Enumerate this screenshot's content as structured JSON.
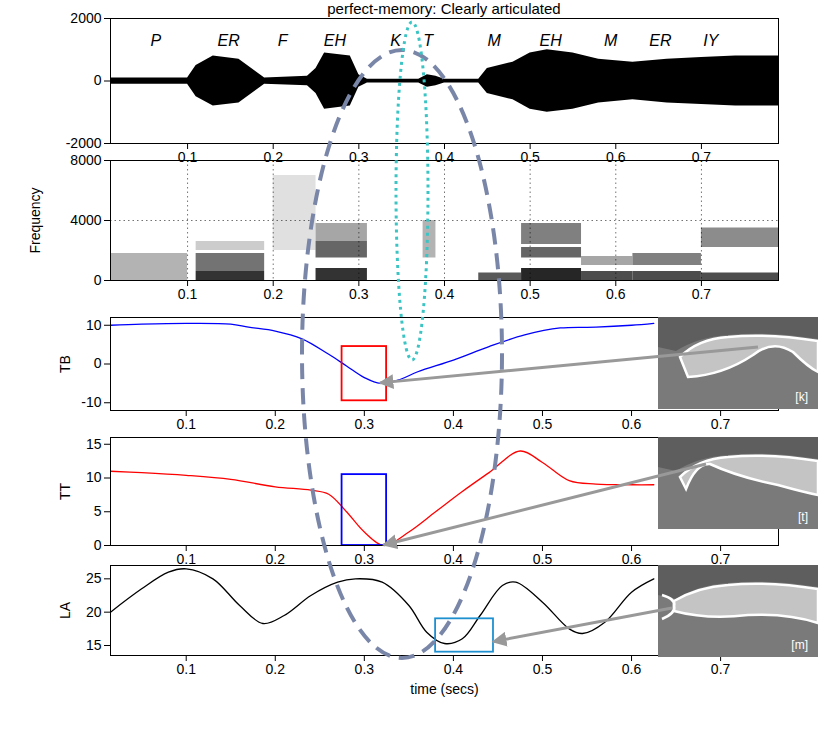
{
  "chart_data": [
    {
      "type": "area",
      "title": "perfect-memory: Clearly articulated",
      "x": [
        0.01,
        0.1,
        0.11,
        0.13,
        0.16,
        0.18,
        0.19,
        0.24,
        0.25,
        0.26,
        0.29,
        0.3,
        0.31,
        0.37,
        0.38,
        0.39,
        0.4,
        0.44,
        0.45,
        0.48,
        0.5,
        0.52,
        0.55,
        0.58,
        0.62,
        0.66,
        0.7,
        0.74,
        0.79
      ],
      "upper": [
        100,
        100,
        500,
        800,
        700,
        300,
        100,
        150,
        400,
        900,
        800,
        200,
        60,
        60,
        200,
        150,
        60,
        60,
        400,
        600,
        900,
        1000,
        900,
        700,
        600,
        700,
        750,
        800,
        800
      ],
      "lower": [
        -100,
        -100,
        -500,
        -800,
        -700,
        -300,
        -100,
        -150,
        -400,
        -900,
        -800,
        -200,
        -60,
        -60,
        -200,
        -150,
        -60,
        -60,
        -400,
        -600,
        -900,
        -1000,
        -900,
        -700,
        -600,
        -700,
        -750,
        -800,
        -800
      ],
      "color": "#000000",
      "xlim": [
        0.01,
        0.79
      ],
      "xticks": [
        0.1,
        0.2,
        0.3,
        0.4,
        0.5,
        0.6,
        0.7
      ],
      "ylim": [
        -2000,
        2000
      ],
      "yticks": [
        -2000,
        0,
        2000
      ],
      "annotations": [
        {
          "text": "P",
          "x": 0.063,
          "y": 1300
        },
        {
          "text": "ER",
          "x": 0.148,
          "y": 1300
        },
        {
          "text": "F",
          "x": 0.211,
          "y": 1300
        },
        {
          "text": "EH",
          "x": 0.272,
          "y": 1300
        },
        {
          "text": "K",
          "x": 0.343,
          "y": 1300
        },
        {
          "text": "T",
          "x": 0.381,
          "y": 1300
        },
        {
          "text": "M",
          "x": 0.458,
          "y": 1300
        },
        {
          "text": "EH",
          "x": 0.524,
          "y": 1300
        },
        {
          "text": "M",
          "x": 0.594,
          "y": 1300
        },
        {
          "text": "ER",
          "x": 0.652,
          "y": 1300
        },
        {
          "text": "IY",
          "x": 0.711,
          "y": 1300
        }
      ]
    },
    {
      "type": "heatmap",
      "ylabel": "Frequency",
      "cells": [
        {
          "x": [
            0.01,
            0.1
          ],
          "y": [
            0,
            1800
          ],
          "value": 0.3
        },
        {
          "x": [
            0.11,
            0.19
          ],
          "y": [
            0,
            600
          ],
          "value": 0.8
        },
        {
          "x": [
            0.11,
            0.19
          ],
          "y": [
            600,
            1800
          ],
          "value": 0.55
        },
        {
          "x": [
            0.11,
            0.19
          ],
          "y": [
            2000,
            2600
          ],
          "value": 0.2
        },
        {
          "x": [
            0.2,
            0.25
          ],
          "y": [
            2000,
            7000
          ],
          "value": 0.12
        },
        {
          "x": [
            0.25,
            0.31
          ],
          "y": [
            0,
            800
          ],
          "value": 0.8
        },
        {
          "x": [
            0.25,
            0.31
          ],
          "y": [
            1500,
            2600
          ],
          "value": 0.6
        },
        {
          "x": [
            0.25,
            0.31
          ],
          "y": [
            2600,
            3800
          ],
          "value": 0.35
        },
        {
          "x": [
            0.375,
            0.39
          ],
          "y": [
            1500,
            4000
          ],
          "value": 0.3
        },
        {
          "x": [
            0.44,
            0.49
          ],
          "y": [
            0,
            500
          ],
          "value": 0.65
        },
        {
          "x": [
            0.49,
            0.56
          ],
          "y": [
            0,
            800
          ],
          "value": 0.85
        },
        {
          "x": [
            0.49,
            0.56
          ],
          "y": [
            1500,
            2200
          ],
          "value": 0.6
        },
        {
          "x": [
            0.49,
            0.56
          ],
          "y": [
            2400,
            3800
          ],
          "value": 0.5
        },
        {
          "x": [
            0.56,
            0.62
          ],
          "y": [
            0,
            600
          ],
          "value": 0.7
        },
        {
          "x": [
            0.56,
            0.62
          ],
          "y": [
            1000,
            1600
          ],
          "value": 0.35
        },
        {
          "x": [
            0.62,
            0.7
          ],
          "y": [
            0,
            600
          ],
          "value": 0.7
        },
        {
          "x": [
            0.62,
            0.7
          ],
          "y": [
            1000,
            1800
          ],
          "value": 0.5
        },
        {
          "x": [
            0.7,
            0.79
          ],
          "y": [
            0,
            500
          ],
          "value": 0.7
        },
        {
          "x": [
            0.7,
            0.79
          ],
          "y": [
            2200,
            3500
          ],
          "value": 0.45
        }
      ],
      "color_range": [
        0,
        1
      ],
      "xlim": [
        0.01,
        0.79
      ],
      "xticks": [
        0.1,
        0.2,
        0.3,
        0.4,
        0.5,
        0.6,
        0.7
      ],
      "ylim": [
        0,
        8000
      ],
      "yticks": [
        0,
        4000,
        8000
      ],
      "grid": true
    },
    {
      "type": "line",
      "ylabel": "TB",
      "x": [
        0.015,
        0.05,
        0.1,
        0.15,
        0.17,
        0.2,
        0.23,
        0.26,
        0.28,
        0.3,
        0.318,
        0.34,
        0.36,
        0.4,
        0.44,
        0.48,
        0.52,
        0.56,
        0.6,
        0.625
      ],
      "values": [
        10.0,
        10.3,
        10.5,
        10.3,
        9.5,
        8.5,
        6.5,
        2.5,
        -0.5,
        -3.5,
        -5.0,
        -4.0,
        -2.0,
        1.0,
        4.5,
        7.5,
        9.3,
        9.5,
        10.0,
        10.5
      ],
      "color": "#0000ff",
      "xlim": [
        0.015,
        0.765
      ],
      "xticks": [
        0.1,
        0.2,
        0.3,
        0.4,
        0.5,
        0.6,
        0.7
      ],
      "ylim": [
        -12,
        12
      ],
      "yticks": [
        -10,
        0,
        10
      ],
      "highlight": {
        "x": [
          0.275,
          0.325
        ],
        "y": [
          -9.5,
          4.5
        ],
        "color": "#ff0000"
      },
      "inset": {
        "label": "[k]",
        "target": [
          0.318,
          -5.0
        ]
      }
    },
    {
      "type": "line",
      "ylabel": "TT",
      "x": [
        0.015,
        0.05,
        0.1,
        0.15,
        0.2,
        0.24,
        0.26,
        0.28,
        0.3,
        0.322,
        0.35,
        0.38,
        0.41,
        0.44,
        0.475,
        0.5,
        0.53,
        0.56,
        0.6,
        0.625
      ],
      "values": [
        11.0,
        10.8,
        10.4,
        9.8,
        8.7,
        8.2,
        7.6,
        5.0,
        2.0,
        0.0,
        2.0,
        5.0,
        8.0,
        10.8,
        14.0,
        12.3,
        9.6,
        9.1,
        9.0,
        9.0
      ],
      "color": "#ff0000",
      "xlim": [
        0.015,
        0.765
      ],
      "xticks": [
        0.1,
        0.2,
        0.3,
        0.4,
        0.5,
        0.6,
        0.7
      ],
      "ylim": [
        0,
        16
      ],
      "yticks": [
        0,
        5,
        10,
        15
      ],
      "highlight": {
        "x": [
          0.275,
          0.325
        ],
        "y": [
          0,
          10.5
        ],
        "color": "#0000ff"
      },
      "inset": {
        "label": "[t]",
        "target": [
          0.322,
          0.0
        ]
      }
    },
    {
      "type": "line",
      "ylabel": "LA",
      "xlabel": "time (secs)",
      "x": [
        0.015,
        0.05,
        0.08,
        0.1,
        0.13,
        0.16,
        0.186,
        0.21,
        0.24,
        0.27,
        0.29,
        0.32,
        0.35,
        0.37,
        0.39,
        0.41,
        0.43,
        0.455,
        0.47,
        0.5,
        0.53,
        0.545,
        0.57,
        0.6,
        0.625
      ],
      "values": [
        20.0,
        23.5,
        26.0,
        26.5,
        25.0,
        21.0,
        18.3,
        19.5,
        22.5,
        24.5,
        25.0,
        24.5,
        21.0,
        17.0,
        15.3,
        16.0,
        19.5,
        24.0,
        24.5,
        21.5,
        17.5,
        16.8,
        18.5,
        23.0,
        25.0
      ],
      "color": "#000000",
      "xlim": [
        0.015,
        0.765
      ],
      "xticks": [
        0.1,
        0.2,
        0.3,
        0.4,
        0.5,
        0.6,
        0.7
      ],
      "ylim": [
        13.5,
        27
      ],
      "yticks": [
        15,
        20,
        25
      ],
      "highlight": {
        "x": [
          0.38,
          0.445
        ],
        "y": [
          14,
          19
        ],
        "color": "#1e90d0"
      },
      "inset": {
        "label": "[m]",
        "target": [
          0.445,
          15.5
        ]
      }
    }
  ]
}
